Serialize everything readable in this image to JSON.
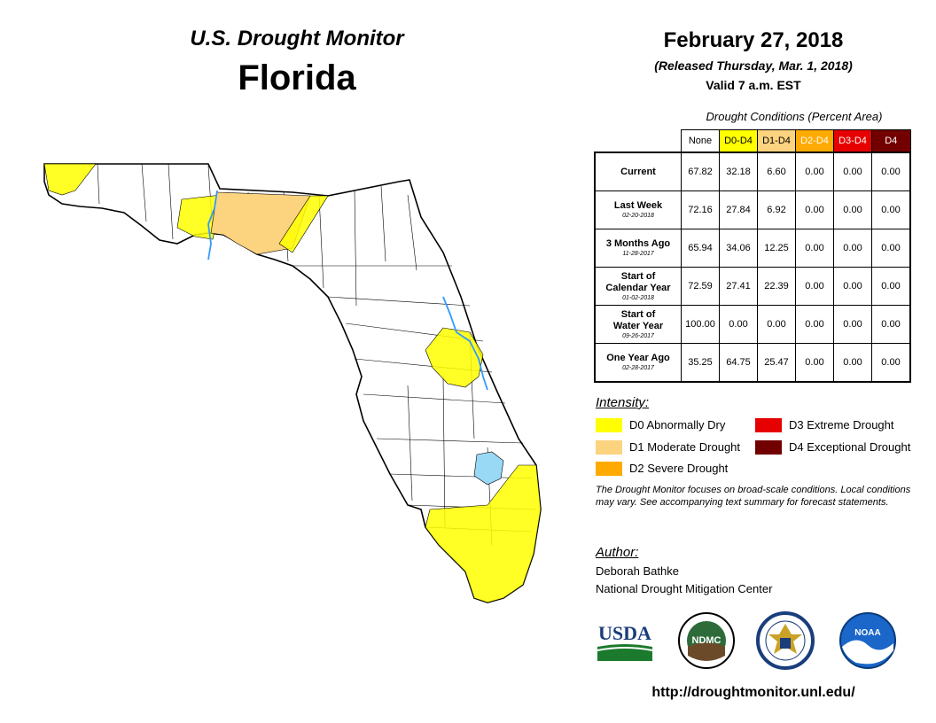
{
  "header": {
    "title": "U.S. Drought Monitor",
    "state": "Florida",
    "date": "February 27, 2018",
    "released": "(Released Thursday, Mar. 1, 2018)",
    "valid": "Valid 7 a.m. EST"
  },
  "table": {
    "caption": "Drought Conditions (Percent Area)",
    "columns": [
      {
        "label": "None",
        "color": "#ffffff",
        "text_color": "#000000"
      },
      {
        "label": "D0-D4",
        "color": "#ffff00",
        "text_color": "#000000"
      },
      {
        "label": "D1-D4",
        "color": "#fcd37f",
        "text_color": "#000000"
      },
      {
        "label": "D2-D4",
        "color": "#ffaa00",
        "text_color": "#ffffff"
      },
      {
        "label": "D3-D4",
        "color": "#e60000",
        "text_color": "#ffffff"
      },
      {
        "label": "D4",
        "color": "#730000",
        "text_color": "#ffffff"
      }
    ],
    "rows": [
      {
        "label_lines": [
          "Current"
        ],
        "date": "",
        "values": [
          "67.82",
          "32.18",
          "6.60",
          "0.00",
          "0.00",
          "0.00"
        ]
      },
      {
        "label_lines": [
          "Last Week"
        ],
        "date": "02-20-2018",
        "values": [
          "72.16",
          "27.84",
          "6.92",
          "0.00",
          "0.00",
          "0.00"
        ]
      },
      {
        "label_lines": [
          "3 Months Ago"
        ],
        "date": "11-28-2017",
        "values": [
          "65.94",
          "34.06",
          "12.25",
          "0.00",
          "0.00",
          "0.00"
        ]
      },
      {
        "label_lines": [
          "Start of",
          "Calendar Year"
        ],
        "date": "01-02-2018",
        "values": [
          "72.59",
          "27.41",
          "22.39",
          "0.00",
          "0.00",
          "0.00"
        ]
      },
      {
        "label_lines": [
          "Start of",
          "Water Year"
        ],
        "date": "09-26-2017",
        "values": [
          "100.00",
          "0.00",
          "0.00",
          "0.00",
          "0.00",
          "0.00"
        ]
      },
      {
        "label_lines": [
          "One Year Ago"
        ],
        "date": "02-28-2017",
        "values": [
          "35.25",
          "64.75",
          "25.47",
          "0.00",
          "0.00",
          "0.00"
        ]
      }
    ]
  },
  "legend": {
    "title": "Intensity:",
    "items": [
      {
        "label": "D0 Abnormally Dry",
        "color": "#ffff00"
      },
      {
        "label": "D1 Moderate Drought",
        "color": "#fcd37f"
      },
      {
        "label": "D2 Severe Drought",
        "color": "#ffaa00"
      },
      {
        "label": "D3 Extreme Drought",
        "color": "#e60000"
      },
      {
        "label": "D4 Exceptional Drought",
        "color": "#730000"
      }
    ]
  },
  "note": "The Drought Monitor focuses on broad-scale conditions. Local conditions may vary. See accompanying text summary for forecast statements.",
  "author": {
    "title": "Author:",
    "name": "Deborah Bathke",
    "org": "National Drought Mitigation Center"
  },
  "logos": {
    "usda": "USDA",
    "ndmc": "NDMC",
    "noaa": "NOAA"
  },
  "url": "http://droughtmonitor.unl.edu/",
  "map_colors": {
    "d0": "#ffff00",
    "d1": "#fcd37f",
    "water": "#99d9f5",
    "river": "#3399ff",
    "outline": "#000000"
  }
}
